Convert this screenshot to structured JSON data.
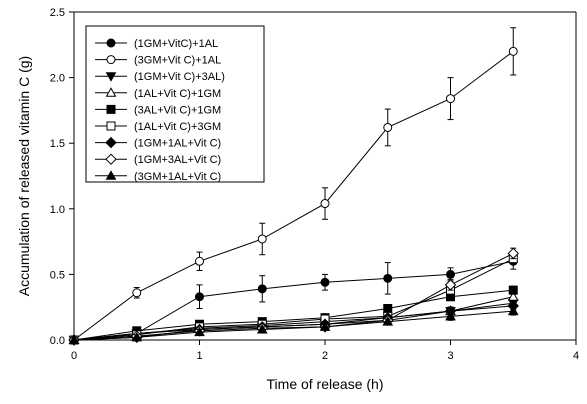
{
  "chart_data": {
    "type": "line",
    "xlabel": "Time of release (h)",
    "ylabel": "Accumulation of released vitamin C (g)",
    "xlim": [
      0,
      4
    ],
    "ylim": [
      0,
      2.5
    ],
    "xticks": [
      "0",
      "1",
      "2",
      "3",
      "4"
    ],
    "yticks": [
      "0.0",
      "0.5",
      "1.0",
      "1.5",
      "2.0",
      "2.5"
    ],
    "grid": false,
    "legend_position": "top-left",
    "x": [
      0,
      0.5,
      1,
      1.5,
      2,
      2.5,
      3,
      3.5
    ],
    "series": [
      {
        "name": "(1GM+VitC)+1AL",
        "marker": "circle-filled",
        "values": [
          0,
          0.05,
          0.33,
          0.39,
          0.44,
          0.47,
          0.5,
          0.6
        ],
        "errors": [
          0,
          0.03,
          0.09,
          0.1,
          0.06,
          0.12,
          0.05,
          0.06
        ]
      },
      {
        "name": "(3GM+Vit C)+1AL",
        "marker": "circle-open",
        "values": [
          0,
          0.36,
          0.6,
          0.77,
          1.04,
          1.62,
          1.84,
          2.2
        ],
        "errors": [
          0,
          0.04,
          0.07,
          0.12,
          0.12,
          0.14,
          0.16,
          0.18
        ]
      },
      {
        "name": "(1GM+Vit C)+3AL)",
        "marker": "triangle-down-filled",
        "values": [
          0,
          0.05,
          0.08,
          0.1,
          0.12,
          0.15,
          0.22,
          0.28
        ],
        "errors": [
          0,
          0.02,
          0.02,
          0.02,
          0.02,
          0.02,
          0.03,
          0.03
        ]
      },
      {
        "name": "(1AL+Vit C)+1GM",
        "marker": "triangle-up-open",
        "values": [
          0,
          0.05,
          0.09,
          0.11,
          0.14,
          0.17,
          0.22,
          0.33
        ],
        "errors": [
          0,
          0.02,
          0.02,
          0.02,
          0.02,
          0.02,
          0.03,
          0.03
        ]
      },
      {
        "name": "(3AL+Vit C)+1GM",
        "marker": "square-filled",
        "values": [
          0,
          0.07,
          0.12,
          0.14,
          0.17,
          0.24,
          0.33,
          0.38
        ],
        "errors": [
          0,
          0.02,
          0.02,
          0.02,
          0.02,
          0.03,
          0.03,
          0.03
        ]
      },
      {
        "name": "(1AL+Vit C)+3GM",
        "marker": "square-open",
        "values": [
          0,
          0.04,
          0.1,
          0.12,
          0.16,
          0.18,
          0.38,
          0.62
        ],
        "errors": [
          0,
          0.02,
          0.02,
          0.02,
          0.02,
          0.02,
          0.04,
          0.04
        ]
      },
      {
        "name": "(1GM+1AL+Vit C)",
        "marker": "diamond-filled",
        "values": [
          0,
          0.02,
          0.08,
          0.1,
          0.12,
          0.17,
          0.22,
          0.26
        ],
        "errors": [
          0,
          0.02,
          0.02,
          0.02,
          0.02,
          0.02,
          0.03,
          0.03
        ]
      },
      {
        "name": "(1GM+3AL+Vit C)",
        "marker": "diamond-open",
        "values": [
          0,
          0.03,
          0.07,
          0.09,
          0.1,
          0.15,
          0.42,
          0.66
        ],
        "errors": [
          0,
          0.02,
          0.02,
          0.02,
          0.02,
          0.02,
          0.04,
          0.04
        ]
      },
      {
        "name": "(3GM+1AL+Vit C)",
        "marker": "triangle-up-filled",
        "values": [
          0,
          0.02,
          0.06,
          0.08,
          0.1,
          0.14,
          0.18,
          0.22
        ],
        "errors": [
          0,
          0.02,
          0.02,
          0.02,
          0.02,
          0.02,
          0.03,
          0.03
        ]
      }
    ]
  }
}
